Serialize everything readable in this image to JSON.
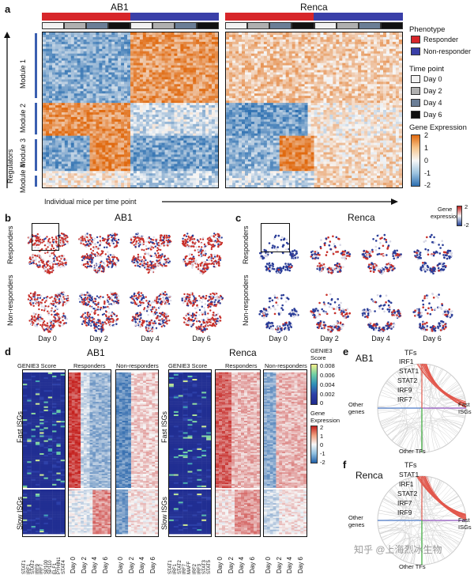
{
  "panels": {
    "a": {
      "label": "a",
      "titles": [
        "AB1",
        "Renca"
      ],
      "modules": [
        "Module 1",
        "Module 2",
        "Module 3",
        "Module 4"
      ],
      "regulators_label": "Regulators",
      "x_axis_label": "Individual mice per time point",
      "legend": {
        "phenotype_title": "Phenotype",
        "phenotype": [
          {
            "label": "Responder",
            "color": "#d7262a"
          },
          {
            "label": "Non-responder",
            "color": "#3a3fa8"
          }
        ],
        "timepoint_title": "Time point",
        "timepoints": [
          {
            "label": "Day 0",
            "color": "#f2f2f2"
          },
          {
            "label": "Day 2",
            "color": "#b0b0b0"
          },
          {
            "label": "Day 4",
            "color": "#6b7e96"
          },
          {
            "label": "Day 6",
            "color": "#111111"
          }
        ],
        "expr_title": "Gene Expression",
        "expr_ticks": [
          "2",
          "1",
          "0",
          "-1",
          "-2"
        ]
      }
    },
    "b": {
      "label": "b",
      "title": "AB1",
      "rows": [
        "Responders",
        "Non-responders"
      ],
      "days": [
        "Day 0",
        "Day 2",
        "Day 4",
        "Day 6"
      ]
    },
    "c": {
      "label": "c",
      "title": "Renca",
      "rows": [
        "Responders",
        "Non-responders"
      ],
      "days": [
        "Day 0",
        "Day 2",
        "Day 4",
        "Day 6"
      ],
      "legend_title": "Gene\nexpression",
      "legend_ticks": [
        "2",
        "-2"
      ]
    },
    "d": {
      "label": "d",
      "titles": [
        "AB1",
        "Renca"
      ],
      "col_headers": [
        "GENIE3 Score",
        "Responders",
        "Non-responders"
      ],
      "row_groups": [
        "Fast ISGs",
        "Slow ISGs"
      ],
      "days": [
        "Day 0",
        "Day 2",
        "Day 4",
        "Day 6"
      ],
      "ab1_genes": [
        "STAT1",
        "IRF1",
        "STAT2",
        "IRF9",
        "IRF7",
        "SP100",
        "SP110",
        "ELF1",
        "PYHIN1",
        "STAT4"
      ],
      "renca_genes": [
        "STAT1",
        "IRF1",
        "STAT2",
        "IRF7",
        "MAFF",
        "IRF2",
        "IRF3",
        "STAT3",
        "STAT5"
      ],
      "genie_legend_title": "GENIE3\nScore",
      "genie_ticks": [
        "0.008",
        "0.006",
        "0.004",
        "0.002",
        "0"
      ],
      "expr_legend_title": "Gene\nExpression",
      "expr_ticks": [
        "2",
        "1",
        "0",
        "-1",
        "-2"
      ]
    },
    "e": {
      "label": "e",
      "title": "AB1",
      "tfs_label": "TFs",
      "tfs": [
        "IRF1",
        "STAT1",
        "STAT2",
        "IRF9",
        "IRF7"
      ],
      "left_label": "Other\ngenes",
      "right_label": "Fast\nISGs",
      "bottom_label": "Other TFs"
    },
    "f": {
      "label": "f",
      "title": "Renca",
      "tfs_label": "TFs",
      "tfs": [
        "STAT1",
        "IRF1",
        "STAT2",
        "IRF7",
        "IRF9"
      ],
      "left_label": "Other\ngenes",
      "right_label": "Fast\nISGs",
      "bottom_label": "Other TFs"
    }
  },
  "watermark": "知乎 @上海烈冰生物"
}
